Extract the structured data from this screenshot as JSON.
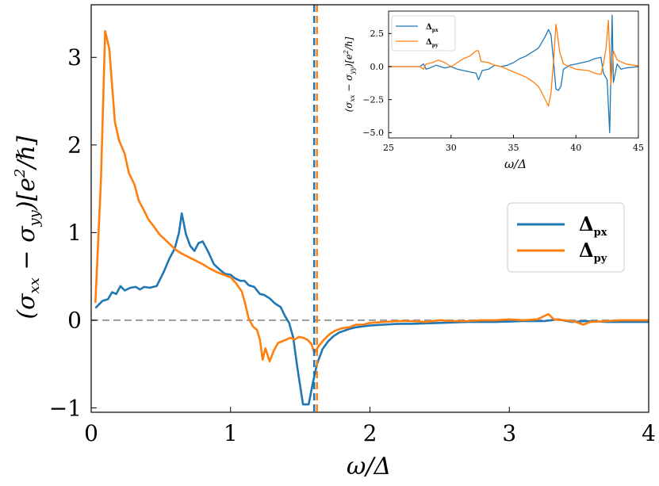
{
  "chart_data": [
    {
      "type": "line",
      "role": "main",
      "xlabel": "ω/Δ",
      "ylabel_parts": [
        "(σ",
        "xx",
        " − σ",
        "yy",
        ")[e",
        "2",
        "/ℏ]"
      ],
      "xlim": [
        0,
        4
      ],
      "ylim": [
        -1.05,
        3.6
      ],
      "xticks": [
        0,
        1,
        2,
        3,
        4
      ],
      "yticks": [
        -1,
        0,
        1,
        2,
        3
      ],
      "xtick_labels": [
        "0",
        "1",
        "2",
        "3",
        "4"
      ],
      "ytick_labels": [
        "−1",
        "0",
        "1",
        "2",
        "3"
      ],
      "grid": false,
      "legend": {
        "placement": "center-right"
      },
      "hline": {
        "y": 0,
        "style": "dashed",
        "color": "#999999"
      },
      "vlines": [
        {
          "x": 1.6,
          "color": "#1f77b4",
          "style": "dashed"
        },
        {
          "x": 1.62,
          "color": "#ff7f0e",
          "style": "dashed"
        }
      ],
      "series": [
        {
          "name": "Δpx",
          "label_main": "Δ",
          "label_sub": "px",
          "color": "#1f77b4",
          "points": [
            [
              0.03,
              0.14
            ],
            [
              0.08,
              0.22
            ],
            [
              0.12,
              0.24
            ],
            [
              0.15,
              0.32
            ],
            [
              0.18,
              0.3
            ],
            [
              0.21,
              0.39
            ],
            [
              0.24,
              0.34
            ],
            [
              0.28,
              0.37
            ],
            [
              0.32,
              0.38
            ],
            [
              0.35,
              0.35
            ],
            [
              0.38,
              0.38
            ],
            [
              0.42,
              0.37
            ],
            [
              0.47,
              0.39
            ],
            [
              0.52,
              0.55
            ],
            [
              0.56,
              0.7
            ],
            [
              0.6,
              0.82
            ],
            [
              0.63,
              1.0
            ],
            [
              0.65,
              1.22
            ],
            [
              0.68,
              0.98
            ],
            [
              0.71,
              0.85
            ],
            [
              0.74,
              0.79
            ],
            [
              0.77,
              0.88
            ],
            [
              0.8,
              0.9
            ],
            [
              0.84,
              0.78
            ],
            [
              0.88,
              0.64
            ],
            [
              0.92,
              0.58
            ],
            [
              0.96,
              0.53
            ],
            [
              1.0,
              0.52
            ],
            [
              1.03,
              0.48
            ],
            [
              1.07,
              0.45
            ],
            [
              1.1,
              0.45
            ],
            [
              1.13,
              0.4
            ],
            [
              1.17,
              0.38
            ],
            [
              1.21,
              0.3
            ],
            [
              1.24,
              0.29
            ],
            [
              1.28,
              0.25
            ],
            [
              1.32,
              0.19
            ],
            [
              1.36,
              0.15
            ],
            [
              1.39,
              0.05
            ],
            [
              1.42,
              -0.03
            ],
            [
              1.45,
              -0.2
            ],
            [
              1.48,
              -0.55
            ],
            [
              1.52,
              -0.96
            ],
            [
              1.56,
              -0.96
            ],
            [
              1.59,
              -0.72
            ],
            [
              1.62,
              -0.5
            ],
            [
              1.66,
              -0.33
            ],
            [
              1.7,
              -0.24
            ],
            [
              1.74,
              -0.18
            ],
            [
              1.78,
              -0.14
            ],
            [
              1.85,
              -0.1
            ],
            [
              1.9,
              -0.08
            ],
            [
              2.0,
              -0.06
            ],
            [
              2.1,
              -0.05
            ],
            [
              2.2,
              -0.04
            ],
            [
              2.3,
              -0.04
            ],
            [
              2.5,
              -0.03
            ],
            [
              2.7,
              -0.02
            ],
            [
              2.9,
              -0.02
            ],
            [
              3.1,
              -0.01
            ],
            [
              3.25,
              -0.01
            ],
            [
              3.35,
              0.01
            ],
            [
              3.45,
              -0.02
            ],
            [
              3.55,
              -0.01
            ],
            [
              3.7,
              -0.02
            ],
            [
              4.0,
              -0.02
            ]
          ]
        },
        {
          "name": "Δpy",
          "label_main": "Δ",
          "label_sub": "py",
          "color": "#ff7f0e",
          "points": [
            [
              0.03,
              0.2
            ],
            [
              0.07,
              1.6
            ],
            [
              0.1,
              3.3
            ],
            [
              0.13,
              3.1
            ],
            [
              0.17,
              2.26
            ],
            [
              0.2,
              2.05
            ],
            [
              0.24,
              1.9
            ],
            [
              0.27,
              1.68
            ],
            [
              0.31,
              1.55
            ],
            [
              0.34,
              1.37
            ],
            [
              0.38,
              1.25
            ],
            [
              0.41,
              1.15
            ],
            [
              0.45,
              1.07
            ],
            [
              0.49,
              0.98
            ],
            [
              0.53,
              0.92
            ],
            [
              0.57,
              0.86
            ],
            [
              0.61,
              0.8
            ],
            [
              0.65,
              0.76
            ],
            [
              0.7,
              0.72
            ],
            [
              0.75,
              0.68
            ],
            [
              0.8,
              0.64
            ],
            [
              0.85,
              0.59
            ],
            [
              0.9,
              0.55
            ],
            [
              0.95,
              0.52
            ],
            [
              1.0,
              0.49
            ],
            [
              1.04,
              0.42
            ],
            [
              1.08,
              0.33
            ],
            [
              1.1,
              0.22
            ],
            [
              1.13,
              0.02
            ],
            [
              1.16,
              -0.07
            ],
            [
              1.19,
              -0.11
            ],
            [
              1.21,
              -0.22
            ],
            [
              1.23,
              -0.45
            ],
            [
              1.25,
              -0.32
            ],
            [
              1.28,
              -0.47
            ],
            [
              1.31,
              -0.35
            ],
            [
              1.34,
              -0.26
            ],
            [
              1.37,
              -0.24
            ],
            [
              1.4,
              -0.22
            ],
            [
              1.43,
              -0.2
            ],
            [
              1.46,
              -0.22
            ],
            [
              1.49,
              -0.19
            ],
            [
              1.52,
              -0.2
            ],
            [
              1.55,
              -0.22
            ],
            [
              1.58,
              -0.27
            ],
            [
              1.6,
              -0.37
            ],
            [
              1.63,
              -0.3
            ],
            [
              1.67,
              -0.22
            ],
            [
              1.71,
              -0.16
            ],
            [
              1.75,
              -0.12
            ],
            [
              1.8,
              -0.09
            ],
            [
              1.85,
              -0.08
            ],
            [
              1.9,
              -0.05
            ],
            [
              1.95,
              -0.05
            ],
            [
              2.0,
              -0.03
            ],
            [
              2.1,
              -0.02
            ],
            [
              2.2,
              -0.01
            ],
            [
              2.3,
              -0.01
            ],
            [
              2.4,
              -0.02
            ],
            [
              2.5,
              0.0
            ],
            [
              2.6,
              -0.01
            ],
            [
              2.7,
              -0.01
            ],
            [
              2.8,
              0.0
            ],
            [
              2.9,
              0.0
            ],
            [
              3.0,
              0.01
            ],
            [
              3.1,
              0.0
            ],
            [
              3.2,
              0.01
            ],
            [
              3.28,
              0.07
            ],
            [
              3.32,
              0.01
            ],
            [
              3.4,
              0.0
            ],
            [
              3.48,
              -0.02
            ],
            [
              3.53,
              -0.05
            ],
            [
              3.58,
              -0.02
            ],
            [
              3.7,
              -0.01
            ],
            [
              3.8,
              0.0
            ],
            [
              4.0,
              0.0
            ]
          ]
        }
      ]
    },
    {
      "type": "line",
      "role": "inset",
      "xlabel": "ω/Δ",
      "ylabel_parts": [
        "(σ",
        "xx",
        " − σ",
        "yy",
        ")[e",
        "2",
        "/ℏ]"
      ],
      "xlim": [
        25,
        45
      ],
      "ylim": [
        -5.4,
        4.2
      ],
      "xticks": [
        25,
        30,
        35,
        40,
        45
      ],
      "yticks": [
        -5.0,
        -2.5,
        0.0,
        2.5
      ],
      "xtick_labels": [
        "25",
        "30",
        "35",
        "40",
        "45"
      ],
      "ytick_labels": [
        "−5.0",
        "−2.5",
        "0.0",
        "2.5"
      ],
      "grid": false,
      "legend": {
        "placement": "top-left"
      },
      "series": [
        {
          "name": "Δpx",
          "label_main": "Δ",
          "label_sub": "px",
          "color": "#1f77b4",
          "points": [
            [
              25,
              0
            ],
            [
              27.5,
              0
            ],
            [
              27.8,
              0.2
            ],
            [
              28,
              -0.2
            ],
            [
              28.3,
              -0.1
            ],
            [
              28.8,
              0.1
            ],
            [
              29.5,
              -0.1
            ],
            [
              30,
              0
            ],
            [
              30.5,
              -0.2
            ],
            [
              31,
              -0.3
            ],
            [
              31.5,
              -0.4
            ],
            [
              32,
              -0.5
            ],
            [
              32.2,
              -1.0
            ],
            [
              32.5,
              -0.3
            ],
            [
              33,
              -0.2
            ],
            [
              33.5,
              0.1
            ],
            [
              34,
              0
            ],
            [
              34.5,
              0.1
            ],
            [
              35,
              0.3
            ],
            [
              35.5,
              0.6
            ],
            [
              36,
              0.8
            ],
            [
              36.5,
              1.1
            ],
            [
              37,
              1.4
            ],
            [
              37.5,
              2.2
            ],
            [
              37.8,
              2.8
            ],
            [
              38,
              2.4
            ],
            [
              38.2,
              0.5
            ],
            [
              38.4,
              -1.7
            ],
            [
              38.6,
              -1.8
            ],
            [
              38.8,
              -1.5
            ],
            [
              39,
              -0.2
            ],
            [
              39.5,
              0.1
            ],
            [
              40,
              0.2
            ],
            [
              40.5,
              0.3
            ],
            [
              41,
              0.4
            ],
            [
              41.5,
              0.6
            ],
            [
              42,
              0.7
            ],
            [
              42.2,
              -0.5
            ],
            [
              42.5,
              -1.0
            ],
            [
              42.7,
              -5.0
            ],
            [
              42.9,
              3.9
            ],
            [
              43,
              -1.2
            ],
            [
              43.3,
              0.2
            ],
            [
              43.6,
              -0.2
            ],
            [
              44,
              -0.1
            ],
            [
              45,
              0
            ]
          ]
        },
        {
          "name": "Δpy",
          "label_main": "Δ",
          "label_sub": "py",
          "color": "#ff7f0e",
          "points": [
            [
              25,
              0
            ],
            [
              27.5,
              0
            ],
            [
              27.8,
              -0.2
            ],
            [
              28,
              0.2
            ],
            [
              28.5,
              0.3
            ],
            [
              29,
              0.5
            ],
            [
              29.5,
              0.3
            ],
            [
              30,
              0
            ],
            [
              30.5,
              0.3
            ],
            [
              31,
              0.6
            ],
            [
              31.5,
              0.8
            ],
            [
              32,
              1.2
            ],
            [
              32.2,
              1.2
            ],
            [
              32.4,
              0.4
            ],
            [
              33,
              0.3
            ],
            [
              33.5,
              0.1
            ],
            [
              34,
              0
            ],
            [
              34.5,
              -0.2
            ],
            [
              35,
              -0.4
            ],
            [
              35.5,
              -0.6
            ],
            [
              36,
              -0.8
            ],
            [
              36.5,
              -1.1
            ],
            [
              37,
              -1.5
            ],
            [
              37.5,
              -2.4
            ],
            [
              37.8,
              -3.0
            ],
            [
              38,
              -2.0
            ],
            [
              38.2,
              0.3
            ],
            [
              38.4,
              3.2
            ],
            [
              38.5,
              2.6
            ],
            [
              38.7,
              1.1
            ],
            [
              39,
              0.2
            ],
            [
              40,
              -0.2
            ],
            [
              41,
              -0.3
            ],
            [
              41.5,
              -0.5
            ],
            [
              42,
              -0.6
            ],
            [
              42.2,
              0.2
            ],
            [
              42.4,
              1.3
            ],
            [
              42.6,
              3.5
            ],
            [
              42.8,
              -1.4
            ],
            [
              43,
              1.2
            ],
            [
              43.3,
              0.5
            ],
            [
              44,
              0.2
            ],
            [
              45,
              0.05
            ]
          ]
        }
      ]
    }
  ]
}
